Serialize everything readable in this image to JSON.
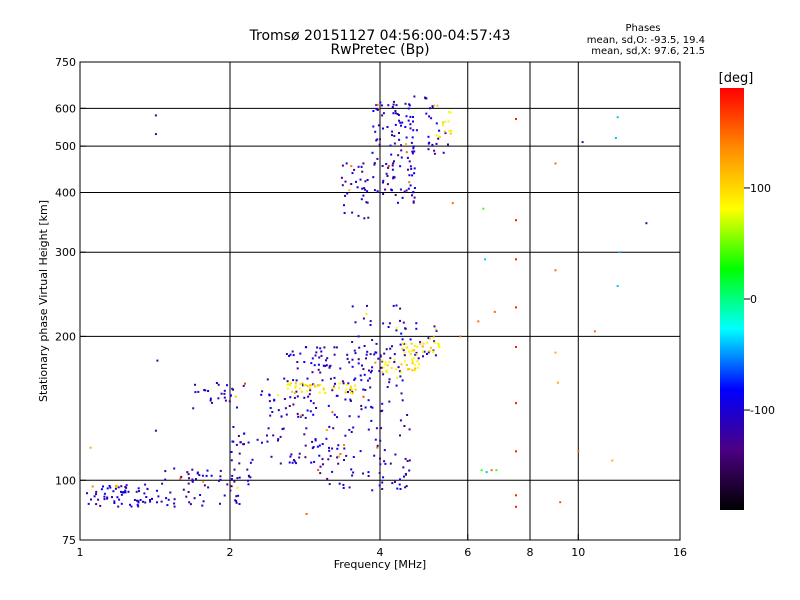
{
  "chart_data": {
    "type": "scatter",
    "title": "Tromsø 20151127 04:56:00-04:57:43",
    "subtitle": "RwPretec (Bp)",
    "phases_title": "Phases",
    "phases_line_o": "mean, sd,O:  -93.5, 19.4",
    "phases_line_x": "mean, sd,X:  97.6, 21.5",
    "xlabel": "Frequency [MHz]",
    "ylabel": "Stationary phase Virtual Height [km]",
    "x_scale": "log",
    "y_scale": "log",
    "xlim": [
      1,
      16
    ],
    "ylim": [
      75,
      750
    ],
    "x_ticks": [
      {
        "value": 1,
        "label": "1"
      },
      {
        "value": 2,
        "label": "2"
      },
      {
        "value": 4,
        "label": "4"
      },
      {
        "value": 6,
        "label": "6"
      },
      {
        "value": 8,
        "label": "8"
      },
      {
        "value": 10,
        "label": "10"
      },
      {
        "value": 16,
        "label": "16"
      }
    ],
    "x_grid": [
      2,
      4,
      6,
      8,
      10
    ],
    "y_ticks": [
      {
        "value": 75,
        "label": "75"
      },
      {
        "value": 100,
        "label": "100"
      },
      {
        "value": 200,
        "label": "200"
      },
      {
        "value": 300,
        "label": "300"
      },
      {
        "value": 400,
        "label": "400"
      },
      {
        "value": 500,
        "label": "500"
      },
      {
        "value": 600,
        "label": "600"
      },
      {
        "value": 750,
        "label": "750"
      }
    ],
    "y_grid": [
      100,
      200,
      300,
      400,
      500,
      600
    ],
    "grid": true,
    "colorbar": {
      "label": "[deg]",
      "range": [
        -190,
        190
      ],
      "ticks": [
        {
          "value": 100,
          "label": "100"
        },
        {
          "value": 0,
          "label": "0"
        },
        {
          "value": -100,
          "label": "-100"
        }
      ],
      "stops": [
        "#000000",
        "#4b0082",
        "#0000ff",
        "#00ffff",
        "#00ff00",
        "#ffff00",
        "#ff8c00",
        "#ff0000"
      ]
    },
    "o_clusters": [
      {
        "f": [
          1.03,
          1.45
        ],
        "h": [
          88,
          98
        ],
        "n": 70
      },
      {
        "f": [
          1.45,
          2.2
        ],
        "h": [
          88,
          106
        ],
        "n": 70
      },
      {
        "f": [
          1.65,
          2.15
        ],
        "h": [
          140,
          160
        ],
        "n": 28
      },
      {
        "f": [
          2.0,
          3.6
        ],
        "h": [
          108,
          130
        ],
        "n": 70
      },
      {
        "f": [
          2.3,
          3.9
        ],
        "h": [
          135,
          165
        ],
        "n": 80
      },
      {
        "f": [
          2.6,
          4.1
        ],
        "h": [
          168,
          190
        ],
        "n": 60
      },
      {
        "f": [
          3.0,
          4.6
        ],
        "h": [
          95,
          120
        ],
        "n": 60
      },
      {
        "f": [
          3.5,
          4.6
        ],
        "h": [
          120,
          235
        ],
        "n": 70
      },
      {
        "f": [
          4.0,
          5.2
        ],
        "h": [
          180,
          215
        ],
        "n": 30
      },
      {
        "f": [
          3.35,
          3.8
        ],
        "h": [
          345,
          470
        ],
        "n": 35
      },
      {
        "f": [
          3.85,
          4.7
        ],
        "h": [
          380,
          620
        ],
        "n": 120
      },
      {
        "f": [
          4.6,
          5.5
        ],
        "h": [
          480,
          640
        ],
        "n": 30
      }
    ],
    "x_clusters": [
      {
        "f": [
          2.6,
          3.6
        ],
        "h": [
          152,
          160
        ],
        "n": 45
      },
      {
        "f": [
          4.0,
          4.8
        ],
        "h": [
          168,
          180
        ],
        "n": 30
      },
      {
        "f": [
          4.4,
          5.3
        ],
        "h": [
          183,
          200
        ],
        "n": 30
      },
      {
        "f": [
          5.1,
          5.6
        ],
        "h": [
          520,
          620
        ],
        "n": 15
      }
    ],
    "sparse_points": [
      {
        "f": 1.42,
        "h": 580,
        "c": -130
      },
      {
        "f": 1.42,
        "h": 530,
        "c": -130
      },
      {
        "f": 1.43,
        "h": 178,
        "c": -130
      },
      {
        "f": 1.42,
        "h": 127,
        "c": -130
      },
      {
        "f": 1.05,
        "h": 117,
        "c": 120
      },
      {
        "f": 2.85,
        "h": 85,
        "c": 150
      },
      {
        "f": 6.4,
        "h": 105,
        "c": 40
      },
      {
        "f": 6.55,
        "h": 104,
        "c": -40
      },
      {
        "f": 6.7,
        "h": 105,
        "c": 150
      },
      {
        "f": 6.85,
        "h": 105,
        "c": 40
      },
      {
        "f": 6.3,
        "h": 215,
        "c": 150
      },
      {
        "f": 6.5,
        "h": 290,
        "c": -40
      },
      {
        "f": 6.8,
        "h": 225,
        "c": 150
      },
      {
        "f": 6.45,
        "h": 370,
        "c": 40
      },
      {
        "f": 7.5,
        "h": 570,
        "c": 180
      },
      {
        "f": 7.5,
        "h": 350,
        "c": 180
      },
      {
        "f": 7.5,
        "h": 290,
        "c": 180
      },
      {
        "f": 7.5,
        "h": 230,
        "c": 180
      },
      {
        "f": 7.5,
        "h": 190,
        "c": 180
      },
      {
        "f": 7.5,
        "h": 145,
        "c": 180
      },
      {
        "f": 7.5,
        "h": 115,
        "c": 180
      },
      {
        "f": 7.5,
        "h": 93,
        "c": 180
      },
      {
        "f": 7.5,
        "h": 88,
        "c": 180
      },
      {
        "f": 9.0,
        "h": 460,
        "c": 150
      },
      {
        "f": 9.0,
        "h": 275,
        "c": 150
      },
      {
        "f": 9.0,
        "h": 185,
        "c": 120
      },
      {
        "f": 9.1,
        "h": 160,
        "c": 120
      },
      {
        "f": 9.2,
        "h": 90,
        "c": 160
      },
      {
        "f": 10.0,
        "h": 115,
        "c": 150
      },
      {
        "f": 10.2,
        "h": 510,
        "c": -130
      },
      {
        "f": 10.8,
        "h": 205,
        "c": 150
      },
      {
        "f": 11.7,
        "h": 110,
        "c": 120
      },
      {
        "f": 12.0,
        "h": 575,
        "c": -40
      },
      {
        "f": 11.9,
        "h": 520,
        "c": -40
      },
      {
        "f": 12.1,
        "h": 300,
        "c": -40
      },
      {
        "f": 12.0,
        "h": 255,
        "c": -40
      },
      {
        "f": 13.7,
        "h": 345,
        "c": -130
      },
      {
        "f": 5.6,
        "h": 380,
        "c": 150
      },
      {
        "f": 5.8,
        "h": 200,
        "c": 150
      }
    ]
  }
}
